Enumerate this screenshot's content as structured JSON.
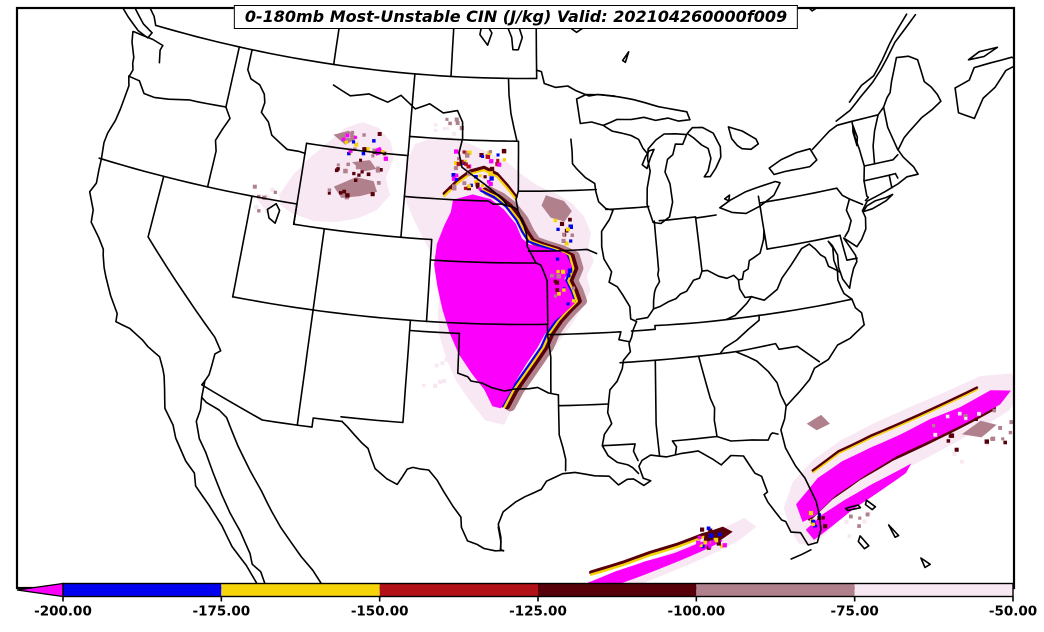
{
  "title": {
    "text": "0-180mb Most-Unstable CIN (J/kg) Valid: 202104260000f009"
  },
  "colorbar": {
    "tick_labels": [
      "-200.00",
      "-175.00",
      "-150.00",
      "-125.00",
      "-100.00",
      "-75.00",
      "-50.00"
    ],
    "segments": [
      {
        "range": "< -200.00",
        "color": "#FB00FB",
        "shape": "left-arrow"
      },
      {
        "range": "-200.00 to -175.00",
        "color": "#0202F0"
      },
      {
        "range": "-175.00 to -150.00",
        "color": "#F5D40A"
      },
      {
        "range": "-150.00 to -125.00",
        "color": "#B11117"
      },
      {
        "range": "-125.00 to -100.00",
        "color": "#57000A"
      },
      {
        "range": "-100.00 to -75.00",
        "color": "#B0808C"
      },
      {
        "range": "-75.00 to -50.00",
        "color": "#F8E8F4"
      }
    ]
  },
  "chart_data": {
    "type": "heatmap",
    "title": "0-180mb Most-Unstable CIN (J/kg)",
    "variable": "Most-Unstable Convective Inhibition",
    "layer": "0-180mb",
    "units": "J/kg",
    "valid": "202104260000f009",
    "legend_position": "bottom",
    "colorbar_ticks": [
      -200,
      -175,
      -150,
      -125,
      -100,
      -75,
      -50
    ],
    "palette": {
      "magenta": "#FB00FB",
      "blue": "#0202F0",
      "yellow": "#F5D40A",
      "red": "#B11117",
      "maroon": "#57000A",
      "mauve": "#B0808C",
      "palePink": "#F8E8F4"
    },
    "regions": [
      "Large CIN < -200 J/kg area over central Plains (Nebraska, Kansas, Oklahoma) with -200 to -50 fringe on its north and east flanks",
      "Scattered -50 to -125 J/kg patches over Montana and Wyoming",
      "Elongated CIN < -200 band over the southern Gulf of Mexico",
      "Gulf-Stream band of CIN < -200 east of Florida extending northeast into the Atlantic",
      "Weak -50 to -75 speckles near Great Salt Lake, west Texas and the Bahamas"
    ],
    "overlay": {
      "polygons": [
        {
          "name": "plains-halo",
          "color": "palePink",
          "pts": [
            -103.6,
            45.6,
            -102.4,
            45.95,
            -101.2,
            46.05,
            -99.8,
            45.75,
            -98.4,
            45.35,
            -97.2,
            44.9,
            -96.2,
            44.3,
            -95.2,
            43.8,
            -94.0,
            43.4,
            -92.9,
            42.9,
            -92.1,
            42.2,
            -91.7,
            41.4,
            -91.9,
            40.7,
            -91.6,
            40.0,
            -92.1,
            39.3,
            -91.9,
            38.6,
            -92.5,
            37.7,
            -93.2,
            36.9,
            -94.1,
            36.0,
            -95.1,
            35.0,
            -96.0,
            34.0,
            -96.7,
            33.0,
            -97.2,
            32.1,
            -98.3,
            32.3,
            -99.2,
            33.2,
            -100.1,
            34.2,
            -100.7,
            35.2,
            -101.2,
            36.3,
            -101.4,
            37.5,
            -101.3,
            38.7,
            -101.7,
            39.9,
            -102.5,
            40.9,
            -103.3,
            41.9,
            -104.0,
            42.9,
            -104.15,
            44.0,
            -104.0,
            44.9
          ]
        },
        {
          "name": "wyoming-halo",
          "color": "palePink",
          "pts": [
            -112.3,
            42.3,
            -111.6,
            43.4,
            -110.6,
            44.4,
            -109.6,
            45.2,
            -108.6,
            46.0,
            -107.4,
            46.4,
            -106.2,
            46.2,
            -105.3,
            45.6,
            -105.0,
            44.8,
            -105.4,
            43.8,
            -105.0,
            43.0,
            -105.8,
            42.2,
            -107.0,
            41.7,
            -108.4,
            41.4,
            -109.8,
            41.3,
            -111.2,
            41.5,
            -112.1,
            41.8
          ]
        },
        {
          "name": "utah-spot",
          "color": "palePink",
          "pts": [
            -113.7,
            41.9,
            -113.1,
            42.25,
            -112.5,
            41.95,
            -113.0,
            41.45
          ]
        },
        {
          "name": "gulf-halo",
          "color": "palePink",
          "pts": [
            -93.3,
            24.1,
            -91.0,
            24.85,
            -88.8,
            25.45,
            -86.8,
            26.0,
            -85.2,
            26.55,
            -84.1,
            26.9,
            -83.5,
            26.4,
            -84.6,
            25.8,
            -86.4,
            25.2,
            -88.6,
            24.55,
            -91.0,
            23.85,
            -92.9,
            23.6
          ]
        },
        {
          "name": "atlantic-halo",
          "color": "palePink",
          "pts": [
            -81.7,
            26.0,
            -81.9,
            27.1,
            -81.2,
            28.3,
            -79.9,
            29.2,
            -78.2,
            29.9,
            -76.2,
            30.4,
            -74.0,
            30.8,
            -71.8,
            31.1,
            -69.6,
            31.4,
            -67.9,
            31.1,
            -67.5,
            30.2,
            -68.6,
            29.4,
            -70.6,
            28.9,
            -72.8,
            28.4,
            -75.0,
            27.9,
            -77.0,
            27.2,
            -78.6,
            26.4,
            -79.8,
            25.6,
            -80.8,
            25.1,
            -81.4,
            25.3
          ]
        },
        {
          "name": "iowa-mauve",
          "color": "mauve",
          "pts": [
            -94.6,
            43.3,
            -93.4,
            43.0,
            -92.9,
            42.5,
            -93.4,
            42.0,
            -94.3,
            42.2,
            -94.9,
            42.8
          ]
        },
        {
          "name": "wyoming-mauve-1",
          "color": "mauve",
          "pts": [
            -108.8,
            43.1,
            -107.4,
            43.7,
            -106.2,
            43.6,
            -105.9,
            43.1,
            -107.0,
            42.8,
            -108.2,
            42.6
          ]
        },
        {
          "name": "wyoming-mauve-2",
          "color": "mauve",
          "pts": [
            -107.8,
            44.4,
            -106.6,
            44.6,
            -106.1,
            44.2,
            -107.0,
            44.0
          ]
        },
        {
          "name": "montana-mauve",
          "color": "mauve",
          "pts": [
            -109.3,
            45.6,
            -108.3,
            45.9,
            -107.6,
            45.6,
            -108.4,
            45.2
          ]
        },
        {
          "name": "atlantic-mauve",
          "color": "mauve",
          "pts": [
            -71.5,
            28.9,
            -70.3,
            29.3,
            -69.5,
            28.9,
            -70.5,
            28.5
          ]
        },
        {
          "name": "georgia-mauve",
          "color": "mauve",
          "pts": [
            -79.9,
            31.0,
            -79.0,
            31.3,
            -78.6,
            30.8,
            -79.4,
            30.6
          ]
        }
      ],
      "fringes": [
        {
          "name": "plains-east-fringe",
          "pts": [
            -97.35,
            33.0,
            -96.85,
            33.8,
            -96.25,
            34.5,
            -95.65,
            35.2,
            -95.05,
            35.9,
            -94.65,
            36.6,
            -94.1,
            37.2,
            -93.5,
            37.7,
            -92.95,
            38.1,
            -93.15,
            38.6,
            -93.45,
            39.1,
            -93.1,
            39.7,
            -93.3,
            40.3,
            -94.1,
            40.6,
            -95.1,
            40.85,
            -95.8,
            41.05,
            -96.2,
            41.5,
            -96.6,
            42.1,
            -97.3,
            42.75,
            -98.1,
            43.2,
            -99.0,
            43.5
          ],
          "layers": [
            {
              "color": "mauve",
              "w": 10,
              "dlon": 0.5,
              "dlat": 0
            },
            {
              "color": "maroon",
              "w": 6,
              "dlon": 0.3,
              "dlat": 0
            },
            {
              "color": "yellow",
              "w": 3.5,
              "dlon": 0.14,
              "dlat": 0
            },
            {
              "color": "blue",
              "w": 2.2,
              "dlon": 0.03,
              "dlat": 0
            }
          ]
        },
        {
          "name": "plains-north-fringe",
          "pts": [
            -101.4,
            43.1,
            -100.5,
            43.8,
            -99.7,
            44.25,
            -98.8,
            44.45,
            -97.9,
            44.15,
            -97.2,
            43.6,
            -96.6,
            43.05
          ],
          "layers": [
            {
              "color": "maroon",
              "w": 3.5,
              "dlon": 0,
              "dlat": 0.18
            },
            {
              "color": "yellow",
              "w": 2.2,
              "dlon": 0,
              "dlat": 0.05
            }
          ]
        },
        {
          "name": "gulf-band-fringe",
          "pts": [
            -92.5,
            24.7,
            -90.8,
            25.1,
            -89.3,
            25.5,
            -87.8,
            25.8,
            -86.4,
            26.15,
            -85.35,
            26.3
          ],
          "layers": [
            {
              "color": "maroon",
              "w": 4,
              "dlon": 0,
              "dlat": 0.15
            },
            {
              "color": "yellow",
              "w": 2.5,
              "dlon": 0,
              "dlat": 0.04
            }
          ]
        },
        {
          "name": "atlantic-band-south-fringe",
          "pts": [
            -80.6,
            26.6,
            -79.3,
            27.4,
            -77.6,
            28.1,
            -75.6,
            28.7,
            -73.5,
            29.1,
            -71.4,
            29.5,
            -69.4,
            29.9
          ],
          "layers": [
            {
              "color": "maroon",
              "w": 4.5,
              "dlon": 0,
              "dlat": -0.18
            },
            {
              "color": "yellow",
              "w": 3,
              "dlon": 0,
              "dlat": -0.06
            },
            {
              "color": "blue",
              "w": 2,
              "dlon": 0,
              "dlat": 0.04
            }
          ]
        },
        {
          "name": "atlantic-band-north-fringe",
          "pts": [
            -80.0,
            28.6,
            -78.4,
            29.3,
            -76.4,
            29.75,
            -74.3,
            30.1,
            -72.2,
            30.45,
            -70.0,
            30.8
          ],
          "layers": [
            {
              "color": "maroon",
              "w": 2.5,
              "dlon": 0,
              "dlat": 0.1
            },
            {
              "color": "yellow",
              "w": 1.5,
              "dlon": 0,
              "dlat": 0.0
            }
          ]
        }
      ],
      "cores": [
        {
          "name": "plains-core",
          "color": "magenta",
          "pts": [
            -100.8,
            43.0,
            -99.5,
            43.3,
            -98.3,
            43.1,
            -97.4,
            42.6,
            -96.6,
            41.9,
            -96.2,
            41.2,
            -95.7,
            40.9,
            -94.4,
            40.65,
            -93.4,
            40.45,
            -93.0,
            39.8,
            -93.5,
            39.2,
            -93.1,
            38.5,
            -92.9,
            38.0,
            -93.6,
            37.5,
            -94.2,
            37.15,
            -94.8,
            36.5,
            -95.3,
            35.8,
            -95.9,
            35.1,
            -96.5,
            34.3,
            -97.0,
            33.5,
            -97.4,
            32.9,
            -97.9,
            33.0,
            -98.4,
            33.8,
            -99.2,
            34.6,
            -100.0,
            35.5,
            -100.6,
            36.5,
            -101.1,
            37.6,
            -101.5,
            38.7,
            -101.8,
            39.8,
            -101.7,
            40.8,
            -101.3,
            41.7,
            -100.9,
            42.4
          ]
        },
        {
          "name": "gulf-core",
          "color": "magenta",
          "pts": [
            -92.7,
            24.35,
            -91.2,
            24.85,
            -89.6,
            25.25,
            -88.0,
            25.55,
            -86.6,
            25.95,
            -85.6,
            26.1,
            -85.4,
            25.9,
            -86.6,
            25.5,
            -88.3,
            25.0,
            -90.2,
            24.45,
            -91.9,
            24.0,
            -92.55,
            24.05
          ]
        },
        {
          "name": "atlantic-core-north",
          "color": "magenta",
          "pts": [
            -81.2,
            27.2,
            -79.8,
            28.3,
            -78.3,
            28.9,
            -76.5,
            29.3,
            -74.8,
            29.6,
            -73.0,
            30.0,
            -71.2,
            30.2,
            -69.3,
            30.6,
            -68.2,
            30.3,
            -69.0,
            29.8,
            -71.0,
            29.4,
            -73.2,
            29.0,
            -75.3,
            28.6,
            -77.2,
            28.0,
            -79.0,
            27.3,
            -80.3,
            26.5,
            -81.0,
            26.3
          ]
        },
        {
          "name": "atlantic-core-south",
          "color": "magenta",
          "pts": [
            -80.9,
            25.9,
            -79.9,
            26.5,
            -78.6,
            27.0,
            -77.0,
            27.5,
            -75.4,
            27.9,
            -74.6,
            28.1,
            -75.0,
            27.7,
            -76.6,
            27.1,
            -78.2,
            26.5,
            -79.6,
            25.8,
            -80.55,
            25.35
          ]
        },
        {
          "name": "montana-core-spot",
          "color": "magenta",
          "pts": [
            -106.5,
            45.1,
            -106.0,
            45.3,
            -105.7,
            45.0,
            -106.2,
            44.85
          ]
        },
        {
          "name": "gulf-east-maroon",
          "color": "maroon",
          "pts": [
            -86.3,
            26.4,
            -85.3,
            26.6,
            -84.8,
            26.3,
            -85.6,
            25.9,
            -86.4,
            26.0
          ]
        }
      ],
      "speckle_clusters": [
        {
          "name": "plains-north-speckles",
          "c": [
            -99.3,
            44.5
          ],
          "s": [
            1.9,
            1.0
          ],
          "n": 55,
          "colors": [
            "yellow",
            "maroon",
            "blue",
            "red",
            "mauve",
            "magenta"
          ],
          "size": 3
        },
        {
          "name": "plains-east-speckles",
          "c": [
            -93.6,
            39.9
          ],
          "s": [
            0.7,
            2.3
          ],
          "n": 30,
          "colors": [
            "blue",
            "yellow",
            "maroon",
            "mauve"
          ],
          "size": 3
        },
        {
          "name": "montana-speckles",
          "c": [
            -106.9,
            45.3
          ],
          "s": [
            1.7,
            0.8
          ],
          "n": 30,
          "colors": [
            "maroon",
            "mauve",
            "palePink",
            "yellow",
            "blue",
            "magenta"
          ],
          "size": 3
        },
        {
          "name": "wyoming-speckles",
          "c": [
            -107.4,
            43.4
          ],
          "s": [
            1.7,
            0.9
          ],
          "n": 26,
          "colors": [
            "maroon",
            "mauve"
          ],
          "size": 3
        },
        {
          "name": "atlantic-ne-speckles",
          "c": [
            -70.5,
            28.8
          ],
          "s": [
            2.6,
            1.2
          ],
          "n": 28,
          "colors": [
            "mauve",
            "palePink",
            "maroon"
          ],
          "size": 3
        },
        {
          "name": "miami-speckles",
          "c": [
            -80.15,
            26.3
          ],
          "s": [
            0.4,
            0.55
          ],
          "n": 12,
          "colors": [
            "maroon",
            "yellow",
            "blue",
            "magenta"
          ],
          "size": 3
        },
        {
          "name": "gulf-east-speckles",
          "c": [
            -85.9,
            26.1
          ],
          "s": [
            0.85,
            0.5
          ],
          "n": 20,
          "colors": [
            "maroon",
            "yellow",
            "blue",
            "magenta"
          ],
          "size": 3
        },
        {
          "name": "great-salt-lake-speckles",
          "c": [
            -113.3,
            41.9
          ],
          "s": [
            0.8,
            0.6
          ],
          "n": 10,
          "colors": [
            "palePink",
            "mauve"
          ],
          "size": 3
        },
        {
          "name": "west-texas-speckles",
          "c": [
            -101.6,
            34.4
          ],
          "s": [
            1.0,
            0.8
          ],
          "n": 7,
          "colors": [
            "palePink"
          ],
          "size": 3
        },
        {
          "name": "bahamas-speckles",
          "c": [
            -77.6,
            25.5
          ],
          "s": [
            1.3,
            0.7
          ],
          "n": 8,
          "colors": [
            "palePink",
            "mauve"
          ],
          "size": 3
        },
        {
          "name": "east-montana-speckles",
          "c": [
            -101.5,
            46.5
          ],
          "s": [
            1.3,
            0.6
          ],
          "n": 10,
          "colors": [
            "palePink",
            "mauve"
          ],
          "size": 3
        }
      ]
    }
  }
}
